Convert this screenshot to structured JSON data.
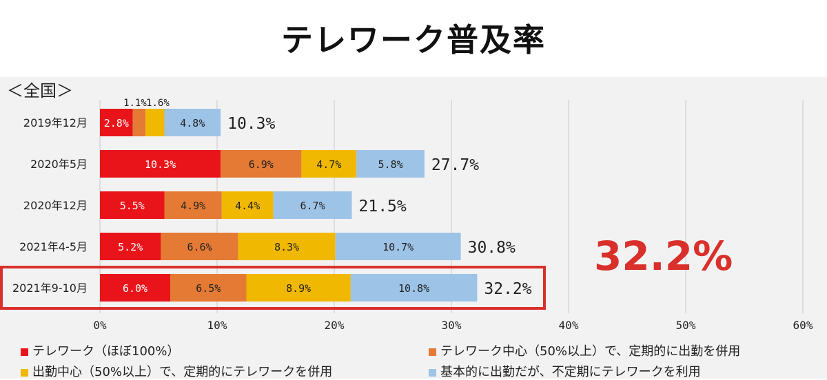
{
  "title": "テレワーク普及率",
  "region_label": "＜全国＞",
  "highlight": {
    "value_label": "32.2%",
    "color": "#d9302b"
  },
  "chart_data": {
    "type": "bar",
    "orientation": "horizontal",
    "stacked": true,
    "categories": [
      "2019年12月",
      "2020年5月",
      "2020年12月",
      "2021年4-5月",
      "2021年9-10月"
    ],
    "series": [
      {
        "name": "テレワーク（ほぼ100%）",
        "color": "#e8141a",
        "values": [
          2.8,
          10.3,
          5.5,
          5.2,
          6.0
        ],
        "labels": [
          "2.8%",
          "10.3%",
          "5.5%",
          "5.2%",
          "6.0%"
        ]
      },
      {
        "name": "テレワーク中心（50%以上）で、定期的に出勤を併用",
        "color": "#e57a34",
        "values": [
          1.1,
          6.9,
          4.9,
          6.6,
          6.5
        ],
        "labels": [
          "",
          "6.9%",
          "4.9%",
          "6.6%",
          "6.5%"
        ]
      },
      {
        "name": "出勤中心（50%以上）で、定期的にテレワークを併用",
        "color": "#f0b800",
        "values": [
          1.6,
          4.7,
          4.4,
          8.3,
          8.9
        ],
        "labels": [
          "",
          "4.7%",
          "4.4%",
          "8.3%",
          "8.9%"
        ]
      },
      {
        "name": "基本的に出勤だが、不定期にテレワークを利用",
        "color": "#9dc3e6",
        "values": [
          4.8,
          5.8,
          6.7,
          10.7,
          10.8
        ],
        "labels": [
          "4.8%",
          "5.8%",
          "6.7%",
          "10.7%",
          "10.8%"
        ]
      }
    ],
    "totals": [
      "10.3%",
      "27.7%",
      "21.5%",
      "30.8%",
      "32.2%"
    ],
    "small_value_labels": [
      "1.1%",
      "1.6%"
    ],
    "xlim": [
      0,
      60
    ],
    "xticks": [
      "0%",
      "10%",
      "20%",
      "30%",
      "40%",
      "50%",
      "60%"
    ],
    "grid": "vertical",
    "highlighted_category": "2021年9-10月",
    "legend": "bottom"
  }
}
